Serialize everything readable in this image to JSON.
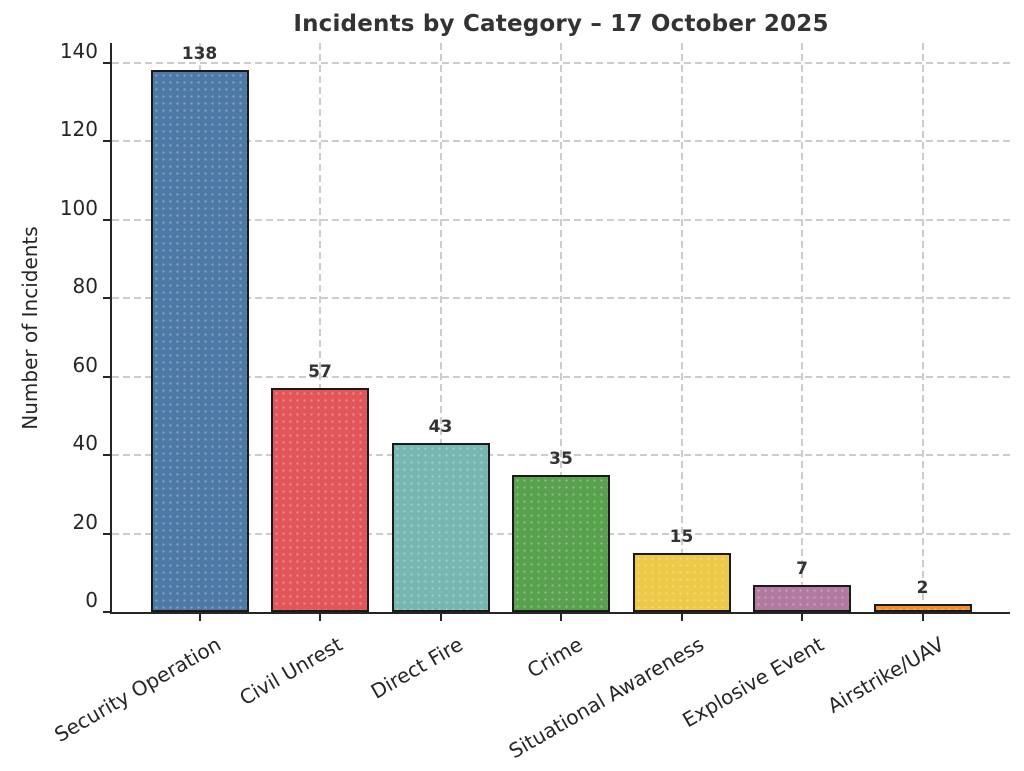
{
  "chart_data": {
    "type": "bar",
    "title": "Incidents by Category – 17 October 2025",
    "xlabel": "",
    "ylabel": "Number of Incidents",
    "categories": [
      "Security Operation",
      "Civil Unrest",
      "Direct Fire",
      "Crime",
      "Situational Awareness",
      "Explosive Event",
      "Airstrike/UAV"
    ],
    "values": [
      138,
      57,
      43,
      35,
      15,
      7,
      2
    ],
    "value_labels": [
      "138",
      "57",
      "43",
      "35",
      "15",
      "7",
      "2"
    ],
    "bar_colors": [
      "#4E79A7",
      "#E15759",
      "#76B7B2",
      "#59A14F",
      "#EDC948",
      "#B07AA1",
      "#F28E2B"
    ],
    "bar_edge_color": "#1a1a1a",
    "yticks": [
      0,
      20,
      40,
      60,
      80,
      100,
      120,
      140
    ],
    "ytick_labels": [
      "0",
      "20",
      "40",
      "60",
      "80",
      "100",
      "120",
      "140"
    ],
    "ylim": [
      0,
      145
    ],
    "x_tick_rotation_deg": 30,
    "grid": true,
    "grid_style": "dashed",
    "legend": "none"
  },
  "figure": {
    "background_color": "#ffffff",
    "title_color": "#333333",
    "axis_color": "#262626",
    "tick_label_color": "#262626",
    "grid_color": "#cdcdcd",
    "value_label_color": "#333333"
  }
}
